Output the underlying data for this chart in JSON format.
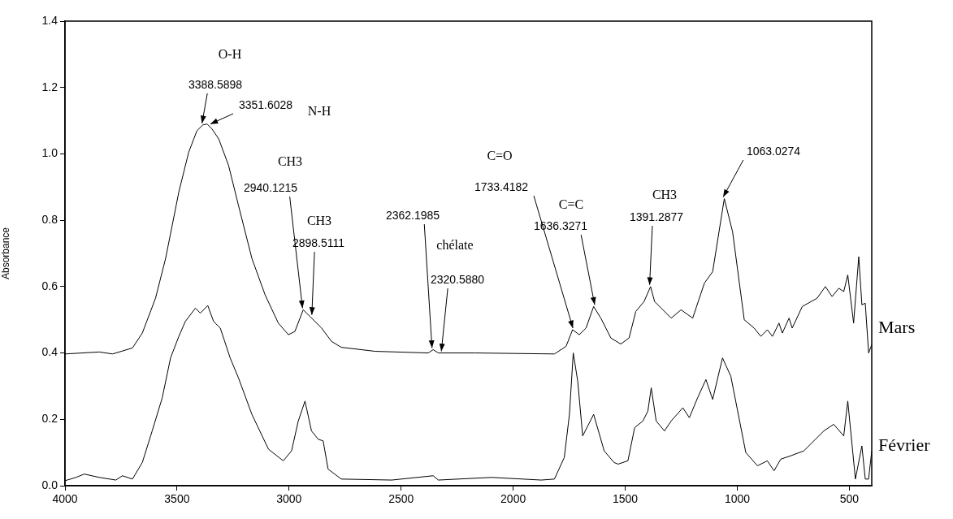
{
  "chart_data": {
    "type": "line",
    "ylabel": "Absorbance",
    "xlim": [
      4000,
      400
    ],
    "xticks": [
      4000,
      3500,
      3000,
      2500,
      2000,
      1500,
      1000,
      500
    ],
    "ylim": [
      0,
      1.4
    ],
    "yticks": [
      {
        "value": 0,
        "label": "0.0"
      },
      0.2,
      0.4,
      0.6,
      0.8,
      {
        "value": 1,
        "label": "1.0"
      },
      1.2,
      1.4
    ],
    "grid": false,
    "legend": false,
    "marker": "none",
    "line_style": "solid",
    "series": [
      {
        "name": "Mars",
        "color": "#000000",
        "x": [
          4000,
          3847,
          3788,
          3699,
          3655,
          3596,
          3551,
          3492,
          3448,
          3411,
          3385,
          3366,
          3344,
          3314,
          3270,
          3226,
          3166,
          3107,
          3048,
          3003,
          2974,
          2937,
          2907,
          2855,
          2811,
          2767,
          2616,
          2379,
          2357,
          2334,
          2171,
          1816,
          1764,
          1735,
          1705,
          1675,
          1641,
          1609,
          1564,
          1520,
          1483,
          1453,
          1416,
          1387,
          1369,
          1295,
          1251,
          1199,
          1147,
          1110,
          1058,
          1021,
          969,
          925,
          895,
          866,
          843,
          814,
          799,
          769,
          755,
          710,
          644,
          607,
          577,
          547,
          525,
          507,
          481,
          458,
          444,
          429,
          414,
          400
        ],
        "values": [
          0.397,
          0.403,
          0.397,
          0.415,
          0.46,
          0.565,
          0.685,
          0.885,
          1.005,
          1.07,
          1.087,
          1.09,
          1.075,
          1.045,
          0.965,
          0.845,
          0.685,
          0.575,
          0.49,
          0.455,
          0.465,
          0.53,
          0.51,
          0.475,
          0.435,
          0.417,
          0.405,
          0.4,
          0.41,
          0.4,
          0.4,
          0.397,
          0.42,
          0.47,
          0.455,
          0.475,
          0.54,
          0.505,
          0.445,
          0.427,
          0.445,
          0.525,
          0.555,
          0.6,
          0.555,
          0.505,
          0.53,
          0.505,
          0.61,
          0.645,
          0.865,
          0.765,
          0.5,
          0.475,
          0.45,
          0.47,
          0.45,
          0.49,
          0.46,
          0.505,
          0.475,
          0.54,
          0.565,
          0.6,
          0.57,
          0.595,
          0.585,
          0.635,
          0.49,
          0.69,
          0.545,
          0.55,
          0.4,
          0.425
        ]
      },
      {
        "name": "Février",
        "color": "#000000",
        "x": [
          4000,
          3951,
          3914,
          3847,
          3773,
          3744,
          3699,
          3655,
          3611,
          3566,
          3529,
          3492,
          3463,
          3418,
          3396,
          3363,
          3337,
          3307,
          3263,
          3226,
          3166,
          3092,
          3026,
          2989,
          2959,
          2929,
          2900,
          2870,
          2848,
          2826,
          2767,
          2542,
          2357,
          2334,
          2097,
          1875,
          1816,
          1772,
          1749,
          1732,
          1712,
          1690,
          1641,
          1594,
          1550,
          1532,
          1488,
          1458,
          1421,
          1399,
          1384,
          1362,
          1325,
          1295,
          1243,
          1214,
          1177,
          1140,
          1110,
          1066,
          1029,
          962,
          910,
          866,
          836,
          806,
          762,
          703,
          614,
          570,
          525,
          507,
          473,
          444,
          429,
          414,
          400
        ],
        "values": [
          0.015,
          0.025,
          0.035,
          0.025,
          0.017,
          0.03,
          0.02,
          0.07,
          0.165,
          0.265,
          0.385,
          0.45,
          0.495,
          0.535,
          0.52,
          0.543,
          0.495,
          0.475,
          0.385,
          0.325,
          0.215,
          0.11,
          0.075,
          0.105,
          0.195,
          0.255,
          0.165,
          0.14,
          0.135,
          0.05,
          0.02,
          0.017,
          0.03,
          0.017,
          0.025,
          0.017,
          0.02,
          0.085,
          0.215,
          0.4,
          0.315,
          0.15,
          0.215,
          0.105,
          0.07,
          0.065,
          0.075,
          0.175,
          0.195,
          0.225,
          0.295,
          0.195,
          0.165,
          0.195,
          0.235,
          0.205,
          0.265,
          0.32,
          0.26,
          0.385,
          0.33,
          0.1,
          0.06,
          0.075,
          0.045,
          0.08,
          0.09,
          0.105,
          0.165,
          0.185,
          0.15,
          0.255,
          0.02,
          0.12,
          0.02,
          0.02,
          0.105
        ]
      }
    ],
    "annotations": [
      "O-H",
      {
        "text": "3388.5898",
        "x": 3388.5898,
        "y": 1.087
      },
      {
        "text": "3351.6028",
        "x": 3351.6028,
        "y": 1.085
      },
      "N-H",
      "CH3",
      {
        "text": "2940.1215",
        "x": 2940.1215,
        "y": 0.53
      },
      "CH3",
      {
        "text": "2898.5111",
        "x": 2898.5111,
        "y": 0.51
      },
      {
        "text": "2362.1985",
        "x": 2362.1985,
        "y": 0.41
      },
      "chélate",
      {
        "text": "2320.5880",
        "x": 2320.588,
        "y": 0.4
      },
      "C=O",
      {
        "text": "1733.4182",
        "x": 1733.4182,
        "y": 0.47
      },
      "C=C",
      {
        "text": "1636.3271",
        "x": 1636.3271,
        "y": 0.54
      },
      "CH3",
      {
        "text": "1391.2877",
        "x": 1391.2877,
        "y": 0.6
      },
      {
        "text": "1063.0274",
        "x": 1063.0274,
        "y": 0.865
      }
    ]
  }
}
